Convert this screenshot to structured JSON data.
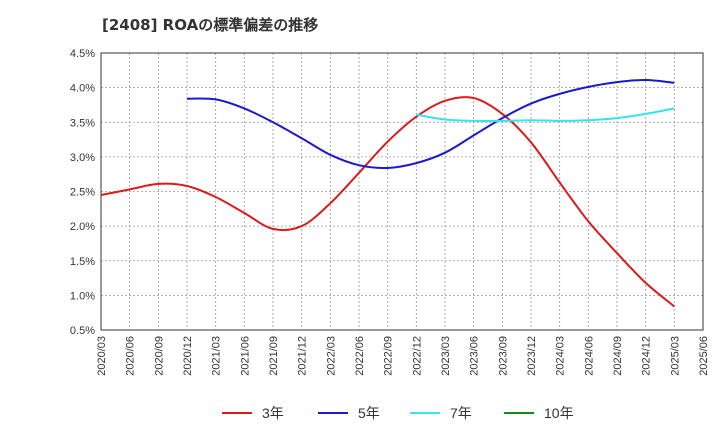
{
  "chart_data": {
    "type": "line",
    "title": "[2408]  ROAの標準偏差の推移",
    "xlabel": "",
    "ylabel": "",
    "x": [
      "2020/03",
      "2020/06",
      "2020/09",
      "2020/12",
      "2021/03",
      "2021/06",
      "2021/09",
      "2021/12",
      "2022/03",
      "2022/06",
      "2022/09",
      "2022/12",
      "2023/03",
      "2023/06",
      "2023/09",
      "2023/12",
      "2024/03",
      "2024/06",
      "2024/09",
      "2024/12",
      "2025/03",
      "2025/06"
    ],
    "y_ticks": [
      "0.5%",
      "1.0%",
      "1.5%",
      "2.0%",
      "2.5%",
      "3.0%",
      "3.5%",
      "4.0%",
      "4.5%"
    ],
    "ylim": [
      0.5,
      4.5
    ],
    "grid": true,
    "legend_position": "bottom",
    "series": [
      {
        "name": "3年",
        "color": "#dd1a1a",
        "values": [
          2.45,
          2.53,
          2.61,
          2.58,
          2.42,
          2.19,
          1.96,
          2.0,
          2.33,
          2.77,
          3.22,
          3.58,
          3.81,
          3.85,
          3.62,
          3.21,
          2.63,
          2.07,
          1.61,
          1.18,
          0.84,
          null
        ]
      },
      {
        "name": "5年",
        "color": "#1a1acc",
        "values": [
          null,
          null,
          null,
          3.84,
          3.83,
          3.7,
          3.5,
          3.27,
          3.03,
          2.88,
          2.84,
          2.91,
          3.06,
          3.31,
          3.56,
          3.77,
          3.91,
          4.01,
          4.08,
          4.11,
          4.07,
          null
        ]
      },
      {
        "name": "7年",
        "color": "#33e5f0",
        "values": [
          null,
          null,
          null,
          null,
          null,
          null,
          null,
          null,
          null,
          null,
          null,
          3.61,
          3.54,
          3.52,
          3.52,
          3.53,
          3.52,
          3.53,
          3.56,
          3.62,
          3.7,
          null
        ]
      },
      {
        "name": "10年",
        "color": "#1a8a1a",
        "values": [
          null,
          null,
          null,
          null,
          null,
          null,
          null,
          null,
          null,
          null,
          null,
          null,
          null,
          null,
          null,
          null,
          null,
          null,
          null,
          null,
          null,
          null
        ]
      }
    ]
  }
}
